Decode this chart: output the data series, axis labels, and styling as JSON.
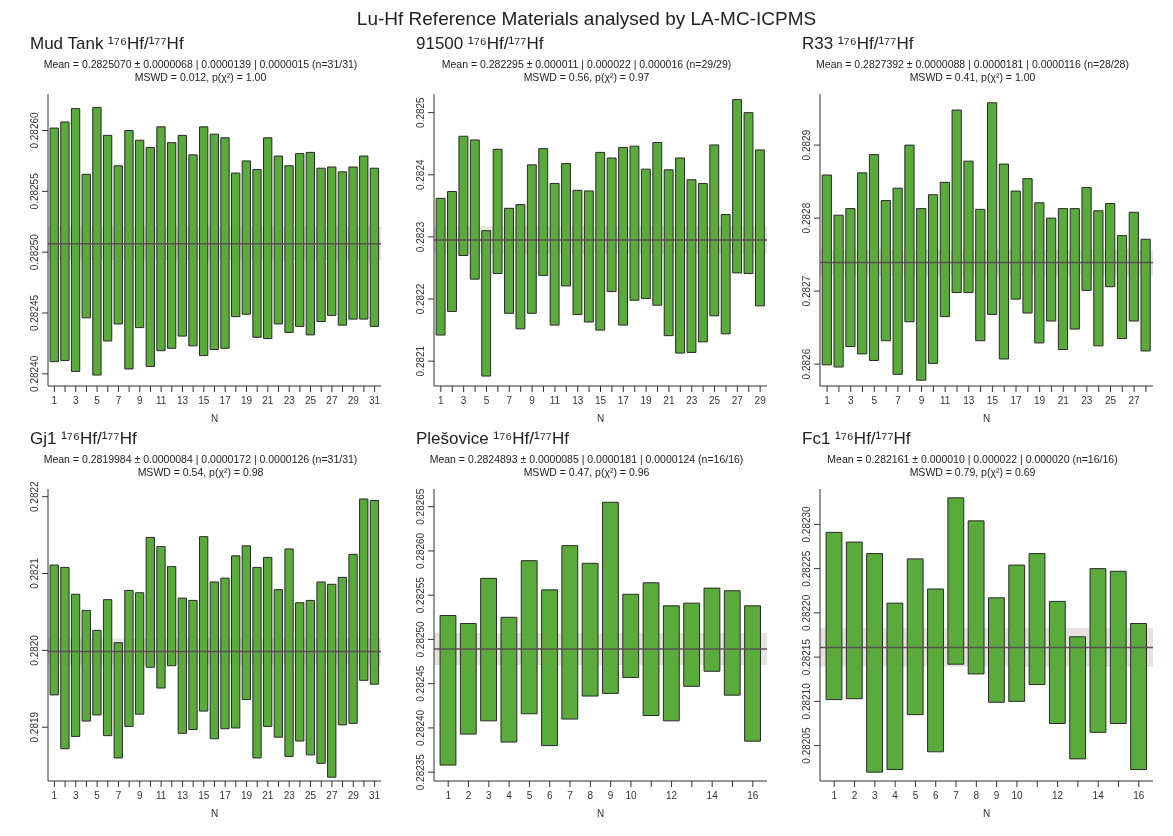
{
  "chart_data": [
    {
      "type": "other",
      "title": "Lu-Hf Reference Materials analysed by LA-MC-ICPMS"
    },
    {
      "type": "bar",
      "title": "Mud Tank ¹⁷⁶Hf/¹⁷⁷Hf",
      "annotations": [
        "Mean = 0.2825070 ± 0.0000068 | 0.0000139 | 0.0000015 (n=31/31)",
        "MSWD = 0.012, p(χ²) = 1.00"
      ],
      "xlabel": "N",
      "x": [
        1,
        2,
        3,
        4,
        5,
        6,
        7,
        8,
        9,
        10,
        11,
        12,
        13,
        14,
        15,
        16,
        17,
        18,
        19,
        20,
        21,
        22,
        23,
        24,
        25,
        26,
        27,
        28,
        29,
        30,
        31
      ],
      "xlim": [
        0.4,
        31.6
      ],
      "xticks": [
        1,
        {
          "value": 2,
          "label": null
        },
        3,
        {
          "value": 4,
          "label": null
        },
        5,
        {
          "value": 6,
          "label": null
        },
        7,
        {
          "value": 8,
          "label": null
        },
        9,
        {
          "value": 10,
          "label": null
        },
        11,
        {
          "value": 12,
          "label": null
        },
        13,
        {
          "value": 14,
          "label": null
        },
        15,
        {
          "value": 16,
          "label": null
        },
        17,
        {
          "value": 18,
          "label": null
        },
        19,
        {
          "value": 20,
          "label": null
        },
        21,
        {
          "value": 22,
          "label": null
        },
        23,
        {
          "value": 24,
          "label": null
        },
        25,
        {
          "value": 26,
          "label": null
        },
        27,
        {
          "value": 28,
          "label": null
        },
        29,
        {
          "value": 30,
          "label": null
        },
        31
      ],
      "base": [
        0.28241,
        0.282411,
        0.282402,
        0.282446,
        0.282399,
        0.282427,
        0.282441,
        0.282404,
        0.282438,
        0.282406,
        0.282419,
        0.282421,
        0.282431,
        0.282423,
        0.282415,
        0.28242,
        0.282421,
        0.282447,
        0.282449,
        0.28243,
        0.282429,
        0.282441,
        0.282434,
        0.282439,
        0.282432,
        0.282443,
        0.282448,
        0.28244,
        0.282445,
        0.282445,
        0.282439
      ],
      "values": [
        0.000192,
        0.000196,
        0.000216,
        0.000118,
        0.00022,
        0.000169,
        0.00013,
        0.000196,
        0.000154,
        0.00018,
        0.000184,
        0.000169,
        0.000165,
        0.000157,
        0.000188,
        0.000177,
        0.000173,
        0.000118,
        0.000126,
        0.000138,
        0.000165,
        0.000138,
        0.000137,
        0.000142,
        0.00015,
        0.000126,
        0.000122,
        0.000126,
        0.000125,
        0.000134,
        0.00013
      ],
      "color": "#5aaa3c",
      "ylim": [
        0.28239,
        0.28263
      ],
      "yticks": [
        {
          "value": 0.2824,
          "label": "0.28240"
        },
        0.28245,
        {
          "value": 0.2825,
          "label": "0.28250"
        },
        0.28255,
        {
          "value": 0.2826,
          "label": "0.28260"
        }
      ],
      "ref_lines": [
        {
          "axis": "y",
          "value": 0.282507,
          "color": "#5a5050"
        }
      ],
      "bands": [
        {
          "axis": "y",
          "from": 0.2824931,
          "to": 0.2825209,
          "color": "#d9d0cd"
        }
      ]
    },
    {
      "type": "bar",
      "title": "91500 ¹⁷⁶Hf/¹⁷⁷Hf",
      "annotations": [
        "Mean = 0.282295 ± 0.000011 | 0.000022 | 0.000016 (n=29/29)",
        "MSWD = 0.56, p(χ²) = 0.97"
      ],
      "xlabel": "N",
      "x": [
        1,
        2,
        3,
        4,
        5,
        6,
        7,
        8,
        9,
        10,
        11,
        12,
        13,
        14,
        15,
        16,
        17,
        18,
        19,
        20,
        21,
        22,
        23,
        24,
        25,
        26,
        27,
        28,
        29
      ],
      "xlim": [
        0.4,
        29.6
      ],
      "xticks": [
        1,
        {
          "value": 2,
          "label": null
        },
        3,
        {
          "value": 4,
          "label": null
        },
        5,
        {
          "value": 6,
          "label": null
        },
        7,
        {
          "value": 8,
          "label": null
        },
        9,
        {
          "value": 10,
          "label": null
        },
        11,
        {
          "value": 12,
          "label": null
        },
        13,
        {
          "value": 14,
          "label": null
        },
        15,
        {
          "value": 16,
          "label": null
        },
        17,
        {
          "value": 18,
          "label": null
        },
        19,
        {
          "value": 20,
          "label": null
        },
        21,
        {
          "value": 22,
          "label": null
        },
        23,
        {
          "value": 24,
          "label": null
        },
        25,
        {
          "value": 26,
          "label": null
        },
        27,
        {
          "value": 28,
          "label": null
        },
        29
      ],
      "base": [
        0.282142,
        0.28218,
        0.28227,
        0.282232,
        0.282076,
        0.282241,
        0.282177,
        0.282152,
        0.282177,
        0.282238,
        0.282158,
        0.282221,
        0.282175,
        0.282163,
        0.28215,
        0.282212,
        0.282158,
        0.282198,
        0.282201,
        0.28219,
        0.282141,
        0.282113,
        0.282114,
        0.282131,
        0.282173,
        0.282144,
        0.282242,
        0.282241,
        0.282189
      ],
      "values": [
        0.00022,
        0.000193,
        0.000192,
        0.000224,
        0.000234,
        0.0002,
        0.000169,
        0.0002,
        0.000239,
        0.000204,
        0.000228,
        0.000197,
        0.0002,
        0.000211,
        0.000286,
        0.000215,
        0.000286,
        0.000248,
        0.000208,
        0.000262,
        0.000267,
        0.000314,
        0.000278,
        0.000255,
        0.000275,
        0.000192,
        0.000279,
        0.000259,
        0.000251
      ],
      "color": "#5aaa3c",
      "ylim": [
        0.28206,
        0.28253
      ],
      "yticks": [
        0.2821,
        0.2822,
        0.2823,
        0.2824,
        0.2825
      ],
      "ref_lines": [
        {
          "axis": "y",
          "value": 0.282295,
          "color": "#5a5050"
        }
      ],
      "bands": [
        {
          "axis": "y",
          "from": 0.282273,
          "to": 0.282317,
          "color": "#d9d0cd"
        }
      ]
    },
    {
      "type": "bar",
      "title": "R33 ¹⁷⁶Hf/¹⁷⁷Hf",
      "annotations": [
        "Mean = 0.2827392 ± 0.0000088 | 0.0000181 | 0.0000116 (n=28/28)",
        "MSWD = 0.41, p(χ²) = 1.00"
      ],
      "xlabel": "N",
      "x": [
        1,
        2,
        3,
        4,
        5,
        6,
        7,
        8,
        9,
        10,
        11,
        12,
        13,
        14,
        15,
        16,
        17,
        18,
        19,
        20,
        21,
        22,
        23,
        24,
        25,
        26,
        27,
        28
      ],
      "xlim": [
        0.4,
        28.6
      ],
      "xticks": [
        1,
        {
          "value": 2,
          "label": null
        },
        3,
        {
          "value": 4,
          "label": null
        },
        5,
        {
          "value": 6,
          "label": null
        },
        7,
        {
          "value": 8,
          "label": null
        },
        9,
        {
          "value": 10,
          "label": null
        },
        11,
        {
          "value": 12,
          "label": null
        },
        13,
        {
          "value": 14,
          "label": null
        },
        15,
        {
          "value": 16,
          "label": null
        },
        17,
        {
          "value": 18,
          "label": null
        },
        19,
        {
          "value": 20,
          "label": null
        },
        21,
        {
          "value": 22,
          "label": null
        },
        23,
        {
          "value": 24,
          "label": null
        },
        25,
        {
          "value": 26,
          "label": null
        },
        27,
        {
          "value": 28,
          "label": null
        }
      ],
      "base": [
        0.282599,
        0.282596,
        0.282624,
        0.282614,
        0.282605,
        0.282632,
        0.282586,
        0.282658,
        0.282578,
        0.282601,
        0.282665,
        0.282698,
        0.282698,
        0.282632,
        0.282668,
        0.282607,
        0.282689,
        0.28267,
        0.282629,
        0.282659,
        0.28262,
        0.282648,
        0.282701,
        0.282625,
        0.282706,
        0.282635,
        0.282659,
        0.282618
      ],
      "values": [
        0.00026,
        0.000208,
        0.000189,
        0.000248,
        0.000282,
        0.000192,
        0.000255,
        0.000242,
        0.000235,
        0.000231,
        0.000184,
        0.00025,
        0.00018,
        0.00018,
        0.00029,
        0.000267,
        0.000148,
        0.000184,
        0.000192,
        0.000141,
        0.000193,
        0.000165,
        0.000141,
        0.000185,
        0.000114,
        0.000141,
        0.000149,
        0.000153
      ],
      "color": "#5aaa3c",
      "ylim": [
        0.28257,
        0.28297
      ],
      "yticks": [
        0.2826,
        0.2827,
        0.2828,
        0.2829
      ],
      "ref_lines": [
        {
          "axis": "y",
          "value": 0.2827392,
          "color": "#5a5050"
        }
      ],
      "bands": [
        {
          "axis": "y",
          "from": 0.2827211,
          "to": 0.2827573,
          "color": "#d9d0cd"
        }
      ]
    },
    {
      "type": "bar",
      "title": "Gj1 ¹⁷⁶Hf/¹⁷⁷Hf",
      "annotations": [
        "Mean = 0.2819984 ± 0.0000084 | 0.0000172 | 0.0000126 (n=31/31)",
        "MSWD = 0.54, p(χ²) = 0.98"
      ],
      "xlabel": "N",
      "x": [
        1,
        2,
        3,
        4,
        5,
        6,
        7,
        8,
        9,
        10,
        11,
        12,
        13,
        14,
        15,
        16,
        17,
        18,
        19,
        20,
        21,
        22,
        23,
        24,
        25,
        26,
        27,
        28,
        29,
        30,
        31
      ],
      "xlim": [
        0.4,
        31.6
      ],
      "xticks": [
        1,
        {
          "value": 2,
          "label": null
        },
        3,
        {
          "value": 4,
          "label": null
        },
        5,
        {
          "value": 6,
          "label": null
        },
        7,
        {
          "value": 8,
          "label": null
        },
        9,
        {
          "value": 10,
          "label": null
        },
        11,
        {
          "value": 12,
          "label": null
        },
        13,
        {
          "value": 14,
          "label": null
        },
        15,
        {
          "value": 16,
          "label": null
        },
        17,
        {
          "value": 18,
          "label": null
        },
        19,
        {
          "value": 20,
          "label": null
        },
        21,
        {
          "value": 22,
          "label": null
        },
        23,
        {
          "value": 24,
          "label": null
        },
        25,
        {
          "value": 26,
          "label": null
        },
        27,
        {
          "value": 28,
          "label": null
        },
        29,
        {
          "value": 30,
          "label": null
        },
        31
      ],
      "base": [
        0.281942,
        0.281872,
        0.281888,
        0.281908,
        0.281916,
        0.281889,
        0.28186,
        0.281901,
        0.281917,
        0.281978,
        0.281951,
        0.28198,
        0.281892,
        0.281897,
        0.281921,
        0.281885,
        0.281898,
        0.281899,
        0.281936,
        0.28186,
        0.281901,
        0.281887,
        0.281862,
        0.281882,
        0.281864,
        0.281853,
        0.281835,
        0.281903,
        0.281905,
        0.281961,
        0.281956
      ],
      "values": [
        0.000169,
        0.000236,
        0.000185,
        0.000144,
        0.00011,
        0.000177,
        0.00015,
        0.000177,
        0.000158,
        0.000169,
        0.000184,
        0.000129,
        0.000176,
        0.000168,
        0.000227,
        0.000204,
        0.000196,
        0.000224,
        0.0002,
        0.000248,
        0.00022,
        0.000192,
        0.00027,
        0.00018,
        0.000201,
        0.000236,
        0.000251,
        0.000192,
        0.00022,
        0.000236,
        0.000239
      ],
      "color": "#5aaa3c",
      "ylim": [
        0.28183,
        0.28221
      ],
      "yticks": [
        0.2819,
        {
          "value": 0.282,
          "label": "0.2820"
        },
        0.2821,
        0.2822
      ],
      "ref_lines": [
        {
          "axis": "y",
          "value": 0.2819984,
          "color": "#5a5050"
        }
      ],
      "bands": [
        {
          "axis": "y",
          "from": 0.2819812,
          "to": 0.2820156,
          "color": "#d9d0cd"
        }
      ]
    },
    {
      "type": "bar",
      "title": "Plešovice ¹⁷⁶Hf/¹⁷⁷Hf",
      "annotations": [
        "Mean = 0.2824893 ± 0.0000085 | 0.0000181 | 0.0000124 (n=16/16)",
        "MSWD = 0.47, p(χ²) = 0.96"
      ],
      "xlabel": "N",
      "x": [
        1,
        2,
        3,
        4,
        5,
        6,
        7,
        8,
        9,
        10,
        11,
        12,
        13,
        14,
        15,
        16
      ],
      "xlim": [
        0.3,
        16.7
      ],
      "xticks": [
        1,
        2,
        3,
        4,
        5,
        6,
        7,
        8,
        9,
        10,
        {
          "value": 11,
          "label": null
        },
        12,
        {
          "value": 13,
          "label": null
        },
        14,
        {
          "value": 15,
          "label": null
        },
        16
      ],
      "base": [
        0.282358,
        0.282393,
        0.282408,
        0.282384,
        0.282416,
        0.28238,
        0.28241,
        0.282436,
        0.282439,
        0.282457,
        0.282414,
        0.282408,
        0.282447,
        0.282464,
        0.282437,
        0.282385
      ],
      "values": [
        0.000169,
        0.000125,
        0.000161,
        0.000141,
        0.000173,
        0.000176,
        0.000196,
        0.00015,
        0.000216,
        9.4e-05,
        0.00015,
        0.00013,
        9.4e-05,
        9.4e-05,
        0.000118,
        0.000153
      ],
      "color": "#5aaa3c",
      "ylim": [
        0.28234,
        0.28267
      ],
      "yticks": [
        0.28235,
        {
          "value": 0.2824,
          "label": "0.28240"
        },
        0.28245,
        {
          "value": 0.2825,
          "label": "0.28250"
        },
        0.28255,
        {
          "value": 0.2826,
          "label": "0.28260"
        },
        0.28265
      ],
      "ref_lines": [
        {
          "axis": "y",
          "value": 0.2824893,
          "color": "#5a5050"
        }
      ],
      "bands": [
        {
          "axis": "y",
          "from": 0.2824712,
          "to": 0.2825074,
          "color": "#d9d0cd"
        }
      ]
    },
    {
      "type": "bar",
      "title": "Fc1 ¹⁷⁶Hf/¹⁷⁷Hf",
      "annotations": [
        "Mean = 0.282161 ± 0.000010 | 0.000022 | 0.000020 (n=16/16)",
        "MSWD = 0.79, p(χ²) = 0.69"
      ],
      "xlabel": "N",
      "x": [
        1,
        2,
        3,
        4,
        5,
        6,
        7,
        8,
        9,
        10,
        11,
        12,
        13,
        14,
        15,
        16
      ],
      "xlim": [
        0.3,
        16.7
      ],
      "xticks": [
        1,
        2,
        3,
        4,
        5,
        6,
        7,
        8,
        9,
        10,
        {
          "value": 11,
          "label": null
        },
        12,
        {
          "value": 13,
          "label": null
        },
        14,
        {
          "value": 15,
          "label": null
        },
        16
      ],
      "base": [
        0.282102,
        0.282103,
        0.28202,
        0.282023,
        0.282085,
        0.282043,
        0.282142,
        0.282131,
        0.282099,
        0.2821,
        0.282119,
        0.282075,
        0.282035,
        0.282065,
        0.282075,
        0.282023
      ],
      "values": [
        0.000189,
        0.000177,
        0.000247,
        0.000188,
        0.000176,
        0.000184,
        0.000188,
        0.000173,
        0.000118,
        0.000154,
        0.000148,
        0.000138,
        0.000138,
        0.000185,
        0.000172,
        0.000165
      ],
      "color": "#5aaa3c",
      "ylim": [
        0.28201,
        0.28234
      ],
      "yticks": [
        0.28205,
        {
          "value": 0.2821,
          "label": "0.28210"
        },
        0.28215,
        {
          "value": 0.2822,
          "label": "0.28220"
        },
        0.28225,
        {
          "value": 0.2823,
          "label": "0.28230"
        }
      ],
      "ref_lines": [
        {
          "axis": "y",
          "value": 0.282161,
          "color": "#5a5050"
        }
      ],
      "bands": [
        {
          "axis": "y",
          "from": 0.282139,
          "to": 0.282183,
          "color": "#d9d0cd"
        }
      ]
    }
  ]
}
